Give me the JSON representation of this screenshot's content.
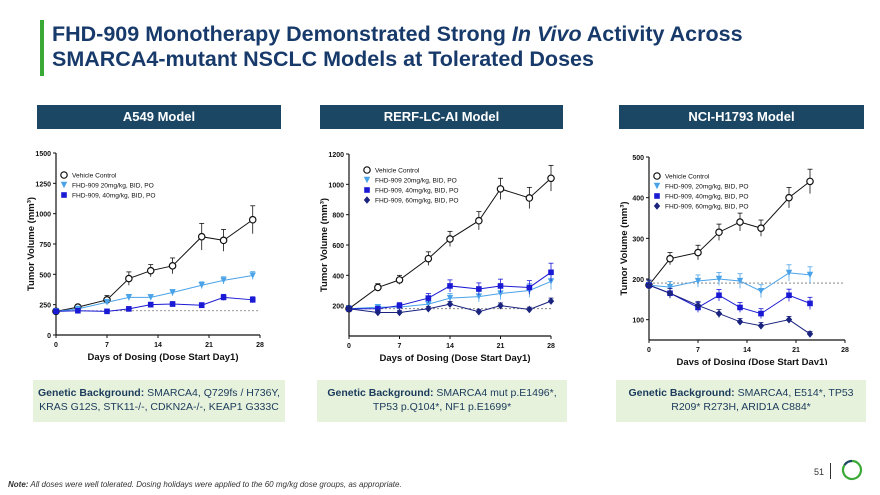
{
  "slide": {
    "title_part1": "FHD-909 Monotherapy Demonstrated Strong ",
    "title_italic": "In Vivo",
    "title_part2": " Activity Across",
    "title_line2": "SMARCA4-mutant NSCLC Models at Tolerated Doses",
    "note_label": "Note:",
    "note_text": " All doses were well tolerated. Dosing holidays were applied to the 60 mg/kg dose groups, as appropriate.",
    "page_number": "51"
  },
  "panels": [
    {
      "header": "A549 Model",
      "genetic_label": "Genetic Background:",
      "genetic_text": " SMARCA4, Q729fs / H736Y, KRAS G12S, STK11-/-, CDKN2A-/-, KEAP1 G333C"
    },
    {
      "header": "RERF-LC-AI Model",
      "genetic_label": "Genetic Background:",
      "genetic_text": " SMARCA4 mut p.E1496*, TP53 p.Q104*, NF1 p.E1699*"
    },
    {
      "header": "NCI-H1793 Model",
      "genetic_label": "Genetic Background:",
      "genetic_text": " SMARCA4, E514*, TP53 R209* R273H, ARID1A C884*"
    }
  ],
  "colors": {
    "vehicle": "#111111",
    "dose20": "#4aa3e8",
    "dose40": "#1a1ad4",
    "dose60": "#1a237e",
    "header_bg": "#1b4664",
    "accent": "#3aa935",
    "gene_bg": "#e6f2dc"
  },
  "chart_data": [
    {
      "type": "line",
      "xlabel": "Days of Dosing (Dose Start Day1)",
      "ylabel": "Tumor Volume (mm³)",
      "xlim": [
        0,
        28
      ],
      "ylim": [
        0,
        1500
      ],
      "xticks": [
        0,
        7,
        14,
        21,
        28
      ],
      "yticks": [
        0,
        250,
        500,
        750,
        1000,
        1250,
        1500
      ],
      "reference_line": 200,
      "series": [
        {
          "name": "Vehicle Control",
          "marker": "circle-open",
          "color": "#111111",
          "x": [
            0,
            3,
            7,
            10,
            13,
            16,
            20,
            23,
            27
          ],
          "y": [
            195,
            230,
            290,
            465,
            530,
            570,
            810,
            780,
            950
          ],
          "err": [
            15,
            20,
            35,
            55,
            50,
            65,
            110,
            90,
            115
          ]
        },
        {
          "name": "FHD-909 20mg/kg, BID, PO",
          "marker": "triangle-down",
          "color": "#4aa3e8",
          "x": [
            0,
            3,
            7,
            10,
            13,
            16,
            20,
            23,
            27
          ],
          "y": [
            195,
            215,
            270,
            310,
            310,
            350,
            410,
            450,
            490
          ],
          "err": [
            12,
            15,
            20,
            25,
            22,
            25,
            28,
            30,
            32
          ]
        },
        {
          "name": "FHD-909, 40mg/kg, BID, PO",
          "marker": "square",
          "color": "#1a1ad4",
          "x": [
            0,
            3,
            7,
            10,
            13,
            16,
            20,
            23,
            27
          ],
          "y": [
            195,
            200,
            195,
            215,
            250,
            255,
            245,
            310,
            290
          ],
          "err": [
            10,
            12,
            14,
            18,
            20,
            20,
            22,
            25,
            25
          ]
        }
      ]
    },
    {
      "type": "line",
      "xlabel": "Days of Dosing (Dose Start Day1)",
      "ylabel": "Tumor Volume (mm³)",
      "xlim": [
        0,
        28
      ],
      "ylim": [
        0,
        1200
      ],
      "xticks": [
        0,
        7,
        14,
        21,
        28
      ],
      "yticks": [
        200,
        400,
        600,
        800,
        1000,
        1200
      ],
      "reference_line": 180,
      "series": [
        {
          "name": "Vehicle Control",
          "marker": "circle-open",
          "color": "#111111",
          "x": [
            0,
            4,
            7,
            11,
            14,
            18,
            21,
            25,
            28
          ],
          "y": [
            180,
            320,
            370,
            510,
            640,
            760,
            970,
            910,
            1040
          ],
          "err": [
            15,
            25,
            30,
            45,
            50,
            60,
            70,
            70,
            85
          ]
        },
        {
          "name": "FHD-909 20mg/kg, BID, PO",
          "marker": "triangle-down",
          "color": "#4aa3e8",
          "x": [
            0,
            4,
            7,
            11,
            14,
            18,
            21,
            25,
            28
          ],
          "y": [
            180,
            190,
            190,
            210,
            250,
            260,
            280,
            300,
            360
          ],
          "err": [
            12,
            15,
            18,
            25,
            30,
            35,
            40,
            45,
            55
          ]
        },
        {
          "name": "FHD-909, 40mg/kg, BID, PO",
          "marker": "square",
          "color": "#1a1ad4",
          "x": [
            0,
            4,
            7,
            11,
            14,
            18,
            21,
            25,
            28
          ],
          "y": [
            180,
            180,
            200,
            250,
            330,
            310,
            330,
            320,
            420
          ],
          "err": [
            12,
            15,
            20,
            30,
            40,
            40,
            45,
            45,
            60
          ]
        },
        {
          "name": "FHD-909, 60mg/kg, BID, PO",
          "marker": "diamond",
          "color": "#1a237e",
          "x": [
            0,
            4,
            7,
            11,
            14,
            18,
            21,
            25,
            28
          ],
          "y": [
            180,
            155,
            155,
            180,
            210,
            160,
            200,
            175,
            230
          ],
          "err": [
            10,
            12,
            12,
            15,
            18,
            15,
            18,
            15,
            20
          ]
        }
      ]
    },
    {
      "type": "line",
      "xlabel": "Days of Dosing (Dose Start Day1)",
      "ylabel": "Tumor Volume (mm³)",
      "xlim": [
        0,
        28
      ],
      "ylim": [
        50,
        500
      ],
      "xticks": [
        0,
        7,
        14,
        21,
        28
      ],
      "yticks": [
        100,
        200,
        300,
        400,
        500
      ],
      "reference_line": 190,
      "series": [
        {
          "name": "Vehicle Control",
          "marker": "circle-open",
          "color": "#111111",
          "x": [
            0,
            3,
            7,
            10,
            13,
            16,
            20,
            23
          ],
          "y": [
            185,
            250,
            265,
            315,
            340,
            325,
            400,
            440
          ],
          "err": [
            12,
            15,
            18,
            20,
            22,
            20,
            25,
            30
          ]
        },
        {
          "name": "FHD-909, 20mg/kg, BID, PO",
          "marker": "triangle-down",
          "color": "#4aa3e8",
          "x": [
            0,
            3,
            7,
            10,
            13,
            16,
            20,
            23
          ],
          "y": [
            185,
            180,
            195,
            200,
            195,
            170,
            215,
            210
          ],
          "err": [
            12,
            14,
            15,
            16,
            18,
            16,
            20,
            20
          ]
        },
        {
          "name": "FHD-909, 40mg/kg, BID, PO",
          "marker": "square",
          "color": "#1a1ad4",
          "x": [
            0,
            3,
            7,
            10,
            13,
            16,
            20,
            23
          ],
          "y": [
            185,
            165,
            130,
            160,
            130,
            115,
            160,
            140
          ],
          "err": [
            12,
            12,
            12,
            14,
            12,
            12,
            15,
            15
          ]
        },
        {
          "name": "FHD-909, 60mg/kg, BID, PO",
          "marker": "diamond",
          "color": "#1a237e",
          "x": [
            0,
            3,
            7,
            10,
            13,
            16,
            20,
            23
          ],
          "y": [
            185,
            165,
            135,
            115,
            95,
            85,
            100,
            65
          ],
          "err": [
            12,
            12,
            10,
            10,
            8,
            8,
            8,
            6
          ]
        }
      ]
    }
  ]
}
